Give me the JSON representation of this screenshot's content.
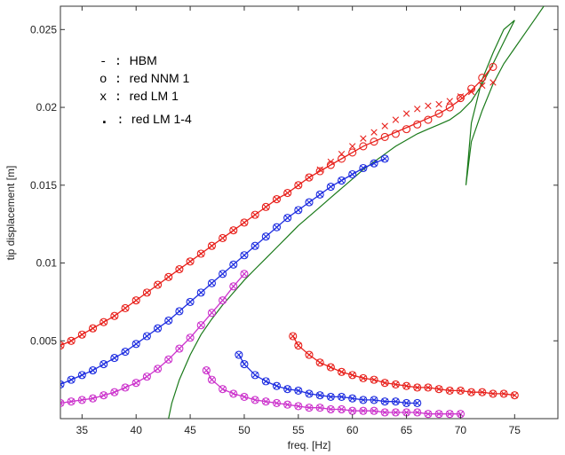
{
  "chart_data": {
    "type": "line",
    "title": "",
    "xlabel": "freq. [Hz]",
    "ylabel": "tip displacement [m]",
    "xlim": [
      33,
      79
    ],
    "ylim": [
      0,
      0.0265
    ],
    "xticks": [
      35,
      40,
      45,
      50,
      55,
      60,
      65,
      70,
      75
    ],
    "yticks": [
      0.005,
      0.01,
      0.015,
      0.02,
      0.025
    ],
    "xtick_labels": [
      "35",
      "40",
      "45",
      "50",
      "55",
      "60",
      "65",
      "70",
      "75"
    ],
    "ytick_labels": [
      "0.005",
      "0.01",
      "0.015",
      "0.02",
      "0.025"
    ],
    "grid": false,
    "legend_position": "top-left",
    "legend": [
      {
        "marker": "-",
        "sep": " : ",
        "label": "HBM"
      },
      {
        "marker": "o",
        "sep": " : ",
        "label": "red NNM 1"
      },
      {
        "marker": "x",
        "sep": " : ",
        "label": "red LM 1"
      },
      {
        "marker": ".",
        "sep": " : ",
        "label": "red LM 1-4"
      }
    ],
    "colors": {
      "green": "#1a7a1a",
      "red": "#e8211c",
      "blue": "#1f2ee0",
      "magenta": "#cc33cc"
    },
    "series": [
      {
        "color": "green",
        "style": "line",
        "x": [
          43.0,
          43.3,
          44.0,
          45.0,
          46.0,
          47.0,
          48.0,
          49.0,
          50.0,
          51.0,
          52.0,
          53.0,
          54.0,
          55.0,
          56.0,
          57.0,
          58.0,
          59.0,
          60.0,
          61.0,
          62.0,
          63.0,
          64.0,
          65.0,
          66.0,
          67.0,
          68.0,
          69.0,
          70.0,
          71.0,
          72.0,
          73.0,
          74.0,
          75.0,
          74.0,
          73.0,
          72.0,
          71.0,
          70.5,
          71.0,
          72.0,
          73.0,
          74.0,
          75.0,
          76.0,
          77.0,
          78.0
        ],
        "y": [
          0.0,
          0.001,
          0.0025,
          0.0041,
          0.0054,
          0.0064,
          0.0073,
          0.0081,
          0.0089,
          0.0096,
          0.0103,
          0.011,
          0.0117,
          0.0124,
          0.013,
          0.0136,
          0.0142,
          0.0148,
          0.0154,
          0.016,
          0.0165,
          0.017,
          0.0175,
          0.0179,
          0.0183,
          0.0186,
          0.0189,
          0.0192,
          0.0197,
          0.0204,
          0.0215,
          0.0228,
          0.0242,
          0.0256,
          0.025,
          0.0235,
          0.0218,
          0.019,
          0.015,
          0.0178,
          0.0198,
          0.0215,
          0.0228,
          0.0238,
          0.0248,
          0.0258,
          0.0268
        ]
      },
      {
        "color": "red",
        "style": "line",
        "x": [
          33,
          34,
          35,
          36,
          37,
          38,
          39,
          40,
          41,
          42,
          43,
          44,
          45,
          46,
          47,
          48,
          49,
          50,
          51,
          52,
          53,
          54,
          55,
          56,
          57,
          58,
          59,
          60,
          61,
          62,
          63,
          64,
          65,
          66,
          67,
          68,
          69,
          70,
          71,
          72,
          73
        ],
        "y": [
          0.0047,
          0.005,
          0.0054,
          0.0058,
          0.0062,
          0.0066,
          0.0071,
          0.0076,
          0.0081,
          0.0086,
          0.0091,
          0.0096,
          0.0101,
          0.0106,
          0.0111,
          0.0116,
          0.0121,
          0.0126,
          0.0131,
          0.0136,
          0.0141,
          0.0145,
          0.015,
          0.0155,
          0.0159,
          0.0163,
          0.0167,
          0.0171,
          0.0175,
          0.0178,
          0.0181,
          0.0184,
          0.0187,
          0.019,
          0.0193,
          0.0196,
          0.02,
          0.0205,
          0.0211,
          0.0218,
          0.0227
        ]
      },
      {
        "color": "red",
        "style": "o",
        "x": [
          33,
          34,
          35,
          36,
          37,
          38,
          39,
          40,
          41,
          42,
          43,
          44,
          45,
          46,
          47,
          48,
          49,
          50,
          51,
          52,
          53,
          54,
          55,
          56,
          57,
          58,
          59,
          60,
          61,
          62,
          63,
          64,
          65,
          66,
          67,
          68,
          69,
          70,
          71,
          72,
          73
        ],
        "y": [
          0.0047,
          0.005,
          0.0054,
          0.0058,
          0.0062,
          0.0066,
          0.0071,
          0.0076,
          0.0081,
          0.0086,
          0.0091,
          0.0096,
          0.0101,
          0.0106,
          0.0111,
          0.0116,
          0.0121,
          0.0126,
          0.0131,
          0.0136,
          0.0141,
          0.0145,
          0.015,
          0.0155,
          0.0159,
          0.0163,
          0.0167,
          0.0171,
          0.0175,
          0.0178,
          0.0181,
          0.0183,
          0.0186,
          0.0189,
          0.0192,
          0.0196,
          0.02,
          0.0206,
          0.0212,
          0.0219,
          0.0226
        ]
      },
      {
        "color": "red",
        "style": "x",
        "x": [
          33,
          34,
          35,
          36,
          37,
          38,
          39,
          40,
          41,
          42,
          43,
          44,
          45,
          46,
          47,
          48,
          49,
          50,
          51,
          52,
          53,
          54,
          55,
          56,
          57,
          58,
          59,
          60,
          61,
          62,
          63,
          64,
          65,
          66,
          67,
          68,
          69,
          70,
          71,
          72,
          73
        ],
        "y": [
          0.0047,
          0.005,
          0.0054,
          0.0058,
          0.0062,
          0.0066,
          0.0071,
          0.0076,
          0.0081,
          0.0086,
          0.0091,
          0.0096,
          0.0101,
          0.0106,
          0.0111,
          0.0116,
          0.0121,
          0.0126,
          0.0131,
          0.0136,
          0.0141,
          0.0145,
          0.015,
          0.0155,
          0.016,
          0.0165,
          0.017,
          0.0175,
          0.018,
          0.0184,
          0.0188,
          0.0192,
          0.0196,
          0.0199,
          0.0201,
          0.0202,
          0.0204,
          0.0207,
          0.021,
          0.0214,
          0.0216
        ]
      },
      {
        "color": "blue",
        "style": "line",
        "x": [
          33,
          34,
          35,
          36,
          37,
          38,
          39,
          40,
          41,
          42,
          43,
          44,
          45,
          46,
          47,
          48,
          49,
          50,
          51,
          52,
          53,
          54,
          55,
          56,
          57,
          58,
          59,
          60,
          61,
          62,
          63
        ],
        "y": [
          0.0022,
          0.0025,
          0.0028,
          0.0031,
          0.0035,
          0.0039,
          0.0043,
          0.0048,
          0.0053,
          0.0058,
          0.0063,
          0.0069,
          0.0075,
          0.0081,
          0.0087,
          0.0093,
          0.0099,
          0.0105,
          0.0111,
          0.0117,
          0.0123,
          0.0129,
          0.0134,
          0.0139,
          0.0144,
          0.0149,
          0.0153,
          0.0157,
          0.0161,
          0.0164,
          0.0167
        ]
      },
      {
        "color": "blue",
        "style": "ox",
        "x": [
          33,
          34,
          35,
          36,
          37,
          38,
          39,
          40,
          41,
          42,
          43,
          44,
          45,
          46,
          47,
          48,
          49,
          50,
          51,
          52,
          53,
          54,
          55,
          56,
          57,
          58,
          59,
          60,
          61,
          62,
          63
        ],
        "y": [
          0.0022,
          0.0025,
          0.0028,
          0.0031,
          0.0035,
          0.0039,
          0.0043,
          0.0048,
          0.0053,
          0.0058,
          0.0063,
          0.0069,
          0.0075,
          0.0081,
          0.0087,
          0.0093,
          0.0099,
          0.0105,
          0.0111,
          0.0117,
          0.0123,
          0.0129,
          0.0134,
          0.0139,
          0.0144,
          0.0149,
          0.0153,
          0.0157,
          0.0161,
          0.0164,
          0.0167
        ]
      },
      {
        "color": "magenta",
        "style": "line",
        "x": [
          33,
          34,
          35,
          36,
          37,
          38,
          39,
          40,
          41,
          42,
          43,
          44,
          45,
          46,
          47,
          48,
          49,
          50
        ],
        "y": [
          0.001,
          0.0011,
          0.0012,
          0.0013,
          0.0015,
          0.0017,
          0.002,
          0.0023,
          0.0027,
          0.0032,
          0.0038,
          0.0045,
          0.0052,
          0.006,
          0.0068,
          0.0076,
          0.0085,
          0.0093
        ]
      },
      {
        "color": "magenta",
        "style": "ox",
        "x": [
          33,
          34,
          35,
          36,
          37,
          38,
          39,
          40,
          41,
          42,
          43,
          44,
          45,
          46,
          47,
          48,
          49,
          50
        ],
        "y": [
          0.001,
          0.0011,
          0.0012,
          0.0013,
          0.0015,
          0.0017,
          0.002,
          0.0023,
          0.0027,
          0.0032,
          0.0038,
          0.0045,
          0.0052,
          0.006,
          0.0068,
          0.0076,
          0.0085,
          0.0093
        ]
      },
      {
        "color": "red",
        "style": "line",
        "x": [
          54.5,
          55,
          56,
          57,
          58,
          59,
          60,
          61,
          62,
          63,
          64,
          65,
          66,
          67,
          68,
          69,
          70,
          71,
          72,
          73,
          74,
          75
        ],
        "y": [
          0.0053,
          0.0047,
          0.0041,
          0.0036,
          0.0033,
          0.003,
          0.0028,
          0.0026,
          0.0025,
          0.0023,
          0.0022,
          0.0021,
          0.002,
          0.002,
          0.0019,
          0.0018,
          0.0018,
          0.0017,
          0.0017,
          0.0016,
          0.0016,
          0.0015
        ]
      },
      {
        "color": "red",
        "style": "ox",
        "x": [
          54.5,
          55,
          56,
          57,
          58,
          59,
          60,
          61,
          62,
          63,
          64,
          65,
          66,
          67,
          68,
          69,
          70,
          71,
          72,
          73,
          74,
          75
        ],
        "y": [
          0.0053,
          0.0047,
          0.0041,
          0.0036,
          0.0033,
          0.003,
          0.0028,
          0.0026,
          0.0025,
          0.0023,
          0.0022,
          0.0021,
          0.002,
          0.002,
          0.0019,
          0.0018,
          0.0018,
          0.0017,
          0.0017,
          0.0016,
          0.0016,
          0.0015
        ]
      },
      {
        "color": "blue",
        "style": "line",
        "x": [
          49.5,
          50,
          51,
          52,
          53,
          54,
          55,
          56,
          57,
          58,
          59,
          60,
          61,
          62,
          63,
          64,
          65,
          66
        ],
        "y": [
          0.0041,
          0.0035,
          0.0028,
          0.0024,
          0.0021,
          0.0019,
          0.0018,
          0.0016,
          0.0015,
          0.0014,
          0.0014,
          0.0013,
          0.0012,
          0.0012,
          0.0011,
          0.0011,
          0.001,
          0.001
        ]
      },
      {
        "color": "blue",
        "style": "ox",
        "x": [
          49.5,
          50,
          51,
          52,
          53,
          54,
          55,
          56,
          57,
          58,
          59,
          60,
          61,
          62,
          63,
          64,
          65,
          66
        ],
        "y": [
          0.0041,
          0.0035,
          0.0028,
          0.0024,
          0.0021,
          0.0019,
          0.0018,
          0.0016,
          0.0015,
          0.0014,
          0.0014,
          0.0013,
          0.0012,
          0.0012,
          0.0011,
          0.0011,
          0.001,
          0.001
        ]
      },
      {
        "color": "magenta",
        "style": "line",
        "x": [
          46.5,
          47,
          48,
          49,
          50,
          51,
          52,
          53,
          54,
          55,
          56,
          57,
          58,
          59,
          60,
          61,
          62,
          63,
          64,
          65,
          66,
          67,
          68,
          69,
          70
        ],
        "y": [
          0.0031,
          0.0025,
          0.0019,
          0.0016,
          0.0014,
          0.0012,
          0.0011,
          0.001,
          0.0009,
          0.0008,
          0.0007,
          0.0007,
          0.0006,
          0.0006,
          0.0005,
          0.0005,
          0.0005,
          0.0004,
          0.0004,
          0.0004,
          0.0004,
          0.0003,
          0.0003,
          0.0003,
          0.0003
        ]
      },
      {
        "color": "magenta",
        "style": "ox",
        "x": [
          46.5,
          47,
          48,
          49,
          50,
          51,
          52,
          53,
          54,
          55,
          56,
          57,
          58,
          59,
          60,
          61,
          62,
          63,
          64,
          65,
          66,
          67,
          68,
          69,
          70
        ],
        "y": [
          0.0031,
          0.0025,
          0.0019,
          0.0016,
          0.0014,
          0.0012,
          0.0011,
          0.001,
          0.0009,
          0.0008,
          0.0007,
          0.0007,
          0.0006,
          0.0006,
          0.0005,
          0.0005,
          0.0005,
          0.0004,
          0.0004,
          0.0004,
          0.0004,
          0.0003,
          0.0003,
          0.0003,
          0.0003
        ]
      }
    ]
  }
}
